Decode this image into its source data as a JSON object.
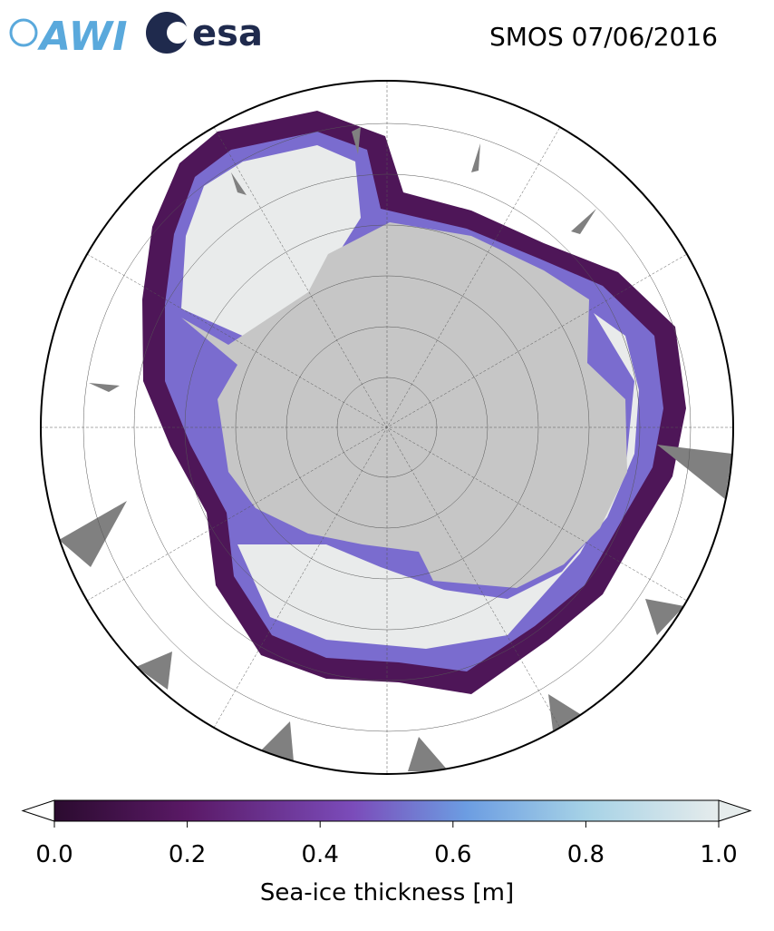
{
  "header": {
    "logos": [
      "AWI",
      "esa"
    ],
    "title": "SMOS 07/06/2016"
  },
  "colorbar": {
    "lim": [
      0,
      1
    ],
    "ticks": [
      {
        "value": 0,
        "label": "0.0"
      },
      {
        "value": 0.2,
        "label": "0.2"
      },
      {
        "value": 0.4,
        "label": "0.4"
      },
      {
        "value": 0.6,
        "label": "0.6"
      },
      {
        "value": 0.8,
        "label": "0.8"
      },
      {
        "value": 1,
        "label": "1.0"
      }
    ],
    "label": "Sea-ice thickness [m]"
  }
}
